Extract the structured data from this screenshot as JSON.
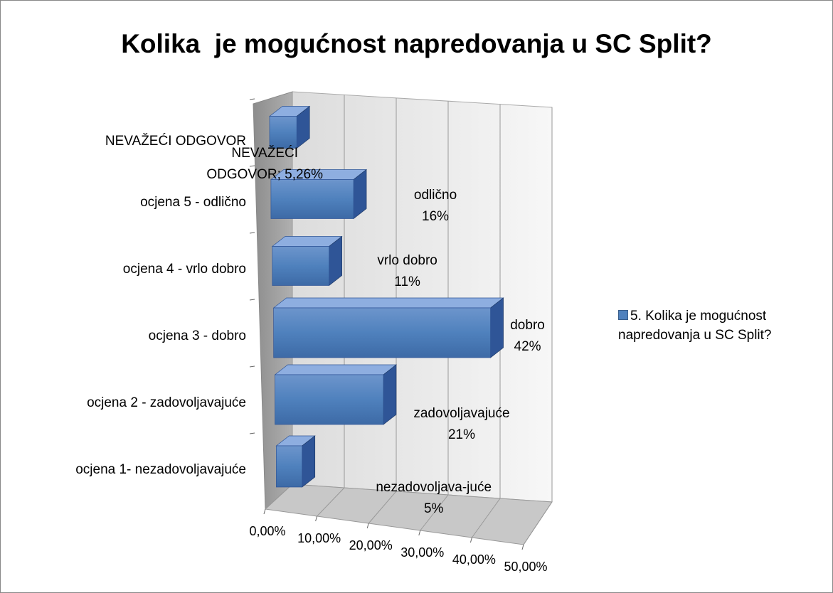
{
  "chart_data": {
    "type": "bar3d-horizontal",
    "title": "Kolika  je mogućnost napredovanja u SC Split?",
    "categories": [
      "ocjena 1- nezadovoljavajuće",
      "ocjena 2 - zadovoljavajuće",
      "ocjena 3 - dobro",
      "ocjena 4 - vrlo dobro",
      "ocjena 5 - odlično",
      "NEVAŽEĆI ODGOVOR"
    ],
    "series": [
      {
        "name": "5. Kolika  je mogućnost napredovanja u SC Split?",
        "color": "#4f81bd",
        "values": [
          5,
          21,
          42,
          11,
          16,
          5.26
        ],
        "value_labels": [
          "nezadovoljava-juće\n5%",
          "zadovoljavajuće\n21%",
          "dobro\n42%",
          "vrlo dobro\n11%",
          "odlično\n16%",
          "NEVAŽEĆI\nODGOVOR; 5,26%"
        ]
      }
    ],
    "xlim": [
      0,
      50
    ],
    "xticks": [
      {
        "value": 0,
        "label": "0,00%"
      },
      {
        "value": 10,
        "label": "10,00%"
      },
      {
        "value": 20,
        "label": "20,00%"
      },
      {
        "value": 30,
        "label": "30,00%"
      },
      {
        "value": 40,
        "label": "40,00%"
      },
      {
        "value": 50,
        "label": "50,00%"
      }
    ],
    "grid": true,
    "legend": "right"
  }
}
